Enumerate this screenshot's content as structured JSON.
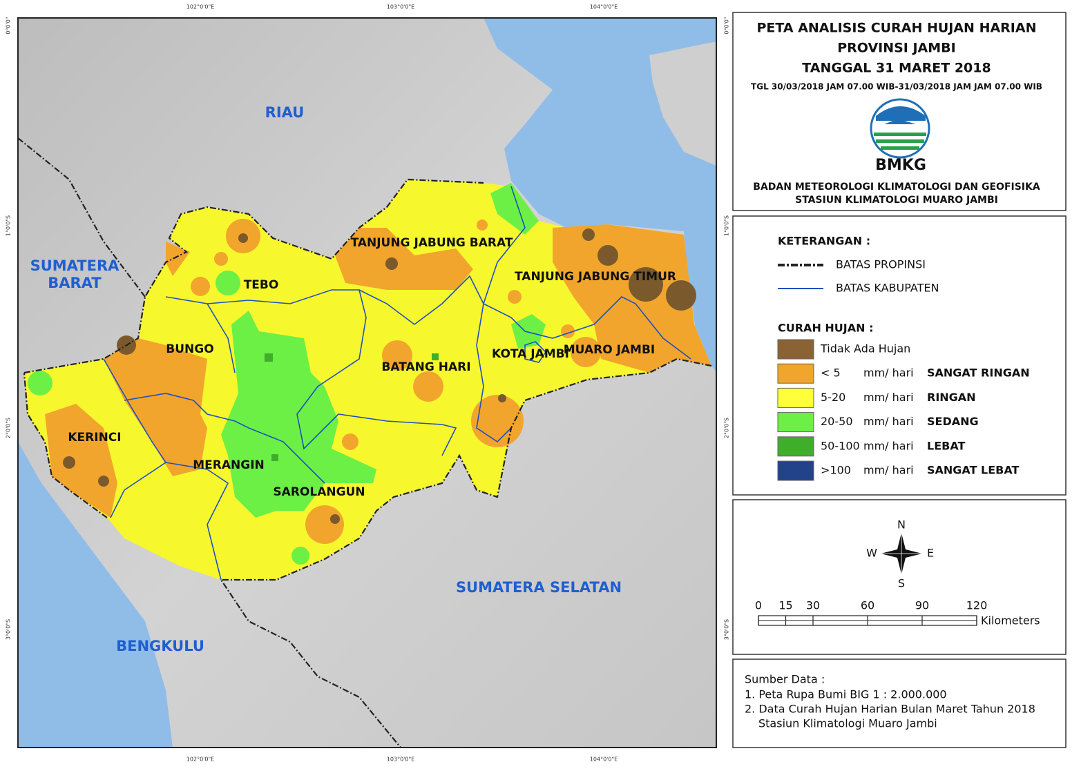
{
  "title_block": {
    "lines": [
      "PETA ANALISIS CURAH HUJAN HARIAN",
      "PROVINSI JAMBI",
      "TANGGAL 31 MARET 2018"
    ],
    "period": "TGL 30/03/2018 JAM 07.00 WIB-31/03/2018 JAM JAM 07.00 WIB",
    "logo_text": "BMKG",
    "agency": [
      "BADAN METEOROLOGI KLIMATOLOGI DAN GEOFISIKA",
      "STASIUN KLIMATOLOGI MUARO JAMBI"
    ]
  },
  "legend": {
    "title": "KETERANGAN :",
    "lines": [
      "BATAS PROPINSI",
      "BATAS KABUPATEN"
    ],
    "rain_title": "CURAH HUJAN :",
    "classes": [
      {
        "label": "Tidak Ada Hujan",
        "color": "#8a6233"
      },
      {
        "range": "< 5",
        "unit": "mm/ hari",
        "name": "SANGAT RINGAN",
        "color": "#f2a52c"
      },
      {
        "range": "5-20",
        "unit": "mm/ hari",
        "name": "RINGAN",
        "color": "#ffff3a"
      },
      {
        "range": "20-50",
        "unit": "mm/ hari",
        "name": "SEDANG",
        "color": "#6cf046"
      },
      {
        "range": "50-100",
        "unit": "mm/ hari",
        "name": "LEBAT",
        "color": "#3fae2a"
      },
      {
        "range": ">100",
        "unit": "mm/ hari",
        "name": "SANGAT LEBAT",
        "color": "#22428a"
      }
    ]
  },
  "compass": {
    "n": "N",
    "e": "E",
    "s": "S",
    "w": "W"
  },
  "scale_bar": {
    "ticks": [
      0,
      15,
      30,
      60,
      90,
      120
    ],
    "unit": "Kilometers"
  },
  "source": {
    "title": "Sumber Data :",
    "items": [
      [
        "1. Peta Rupa Bumi BIG 1 : 2.000.000"
      ],
      [
        "2. Data Curah Hujan Harian Bulan Maret Tahun 2018",
        "Stasiun Klimatologi Muaro Jambi"
      ]
    ]
  },
  "map": {
    "neighbors": [
      [
        "RIAU"
      ],
      [
        "SUMATERA",
        "BARAT"
      ],
      [
        "BENGKULU"
      ],
      [
        "SUMATERA SELATAN"
      ]
    ],
    "regencies": [
      "TEBO",
      "BUNGO",
      "KERINCI",
      "MERANGIN",
      "SAROLANGUN",
      "BATANG HARI",
      "TANJUNG JABUNG BARAT",
      "TANJUNG JABUNG TIMUR",
      "KOTA JAMBI",
      "MUARO JAMBI"
    ],
    "graticule": {
      "lon": [
        "102°0'0\"E",
        "103°0'0\"E",
        "104°0'0\"E"
      ],
      "lat": [
        "0°0'0\"",
        "1°0'0\"S",
        "2°0'0\"S",
        "3°0'0\"S"
      ]
    }
  }
}
